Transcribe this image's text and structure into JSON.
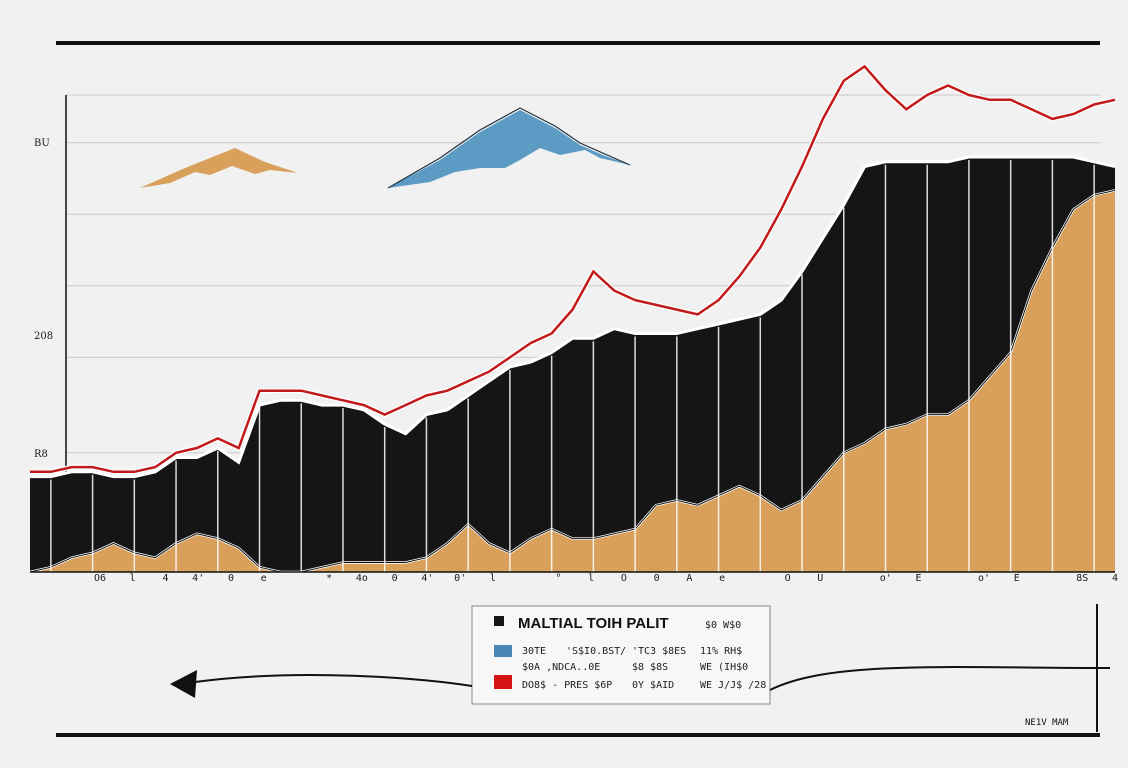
{
  "colors": {
    "background": "#f1f1f1",
    "dark": "#151515",
    "orange": "#d9a05c",
    "red": "#c21a1a",
    "blue": "#5c9cc4",
    "grid": "#c9c9c9",
    "axis": "#111111"
  },
  "chart_data": {
    "type": "area",
    "x": [
      0,
      1,
      2,
      3,
      4,
      5,
      6,
      7,
      8,
      9,
      10,
      11,
      12,
      13,
      14,
      15,
      16,
      17,
      18,
      19,
      20,
      21,
      22,
      23,
      24,
      25,
      26,
      27,
      28,
      29,
      30,
      31,
      32,
      33,
      34,
      35,
      36,
      37,
      38,
      39,
      40,
      41,
      42,
      43,
      44,
      45,
      46,
      47,
      48,
      49,
      50,
      51,
      52
    ],
    "x_tick_labels": [
      "O6",
      "l",
      "4",
      "4'",
      "0",
      "e",
      "",
      "*",
      "4o",
      "0",
      "4'",
      "0'",
      "l",
      "",
      "°",
      "l",
      "O",
      "0",
      "A",
      "e",
      "",
      "O",
      "U",
      "",
      "o'",
      "E",
      "",
      "o'",
      "E",
      "",
      "8S",
      "4"
    ],
    "y_tick_labels": [
      "BU",
      "208",
      "R8"
    ],
    "ylim": [
      0,
      100
    ],
    "series": [
      {
        "values": [
          20,
          20,
          21,
          21,
          20,
          20,
          21,
          24,
          24,
          26,
          23,
          35,
          36,
          36,
          35,
          35,
          34,
          31,
          29,
          33,
          34,
          37,
          40,
          43,
          44,
          46,
          49,
          49,
          51,
          50,
          50,
          50,
          51,
          52,
          53,
          54,
          57,
          63,
          70,
          77,
          85,
          86,
          86,
          86,
          86,
          87,
          87,
          87,
          87,
          87,
          87,
          86,
          85
        ]
      },
      {
        "values": [
          0,
          1,
          3,
          4,
          6,
          4,
          3,
          6,
          8,
          7,
          5,
          1,
          0,
          0,
          1,
          2,
          2,
          2,
          2,
          3,
          6,
          10,
          6,
          4,
          7,
          9,
          7,
          7,
          8,
          9,
          14,
          15,
          14,
          16,
          18,
          16,
          13,
          15,
          20,
          25,
          27,
          30,
          31,
          33,
          33,
          36,
          41,
          46,
          59,
          68,
          76,
          79,
          80
        ]
      },
      {
        "values": [
          21,
          21,
          22,
          22,
          21,
          21,
          22,
          25,
          26,
          28,
          26,
          38,
          38,
          38,
          37,
          36,
          35,
          33,
          35,
          37,
          38,
          40,
          42,
          45,
          48,
          50,
          55,
          63,
          59,
          57,
          56,
          55,
          54,
          57,
          62,
          68,
          76,
          85,
          95,
          103,
          106,
          101,
          97,
          100,
          102,
          100,
          99,
          99,
          97,
          95,
          96,
          98,
          99
        ]
      }
    ]
  },
  "legend": {
    "title": "MALTIAL TOIH PALIT",
    "subtitle": "$0 W$0",
    "rows": [
      {
        "col1": "30TE",
        "col2": "'S$I0.BST/",
        "col3": "'TC3 $8ES",
        "col4": "11% RH$"
      },
      {
        "col1": "$0A ,NDCA..0E",
        "col2": "",
        "col3": "$8 $8S",
        "col4": "WE (IH$0"
      },
      {
        "col1": "DO8$ - PRES $6P",
        "col2": "",
        "col3": "0Y $AID",
        "col4": "WE J/J$ /28"
      }
    ]
  },
  "corner_label": "NE1V MAM"
}
